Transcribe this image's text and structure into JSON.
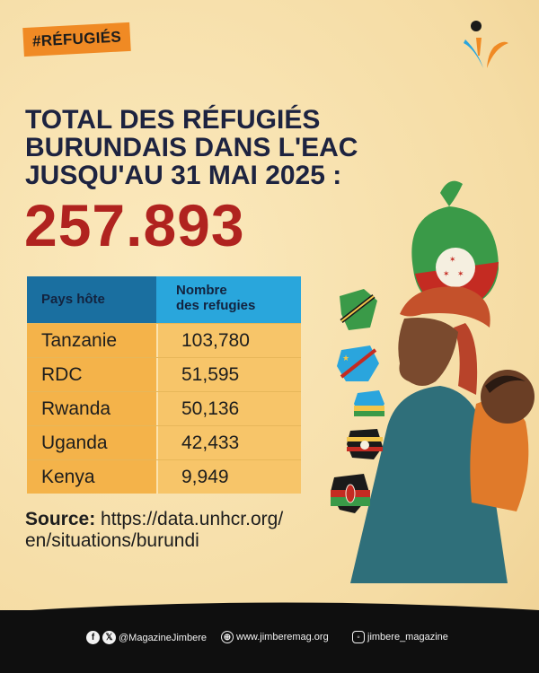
{
  "hashtag": "#RÉFUGIÉS",
  "title_lines": [
    "TOTAL DES RÉFUGIÉS",
    "BURUNDAIS DANS L'EAC",
    "JUSQU'AU 31 MAI 2025 :"
  ],
  "total": "257.893",
  "table": {
    "header_country": "Pays hôte",
    "header_count_line1": "Nombre",
    "header_count_line2": "des refugies",
    "rows": [
      {
        "country": "Tanzanie",
        "count": "103,780"
      },
      {
        "country": "RDC",
        "count": "51,595"
      },
      {
        "country": "Rwanda",
        "count": "50,136"
      },
      {
        "country": "Uganda",
        "count": "42,433"
      },
      {
        "country": "Kenya",
        "count": "9,949"
      }
    ]
  },
  "source": {
    "label": "Source:",
    "url_line1": "https://data.unhcr.org/",
    "url_line2": "en/situations/burundi"
  },
  "footer": {
    "social_handle": "@MagazineJimbere",
    "website": "www.jimberemag.org",
    "instagram": "jimbere_magazine"
  },
  "colors": {
    "background": "#f7e3b0",
    "accent_orange": "#f08a24",
    "title_navy": "#1d2340",
    "total_red": "#b0231f",
    "table_header_dark": "#1a6fa0",
    "table_header_light": "#29a6dc",
    "table_row": "#f4b34a",
    "footer": "#0f0f0f"
  },
  "icons": [
    "logo-mark",
    "facebook-icon",
    "x-icon",
    "globe-icon",
    "instagram-icon",
    "tanzania-map-icon",
    "drc-map-icon",
    "rwanda-map-icon",
    "uganda-map-icon",
    "kenya-map-icon"
  ]
}
